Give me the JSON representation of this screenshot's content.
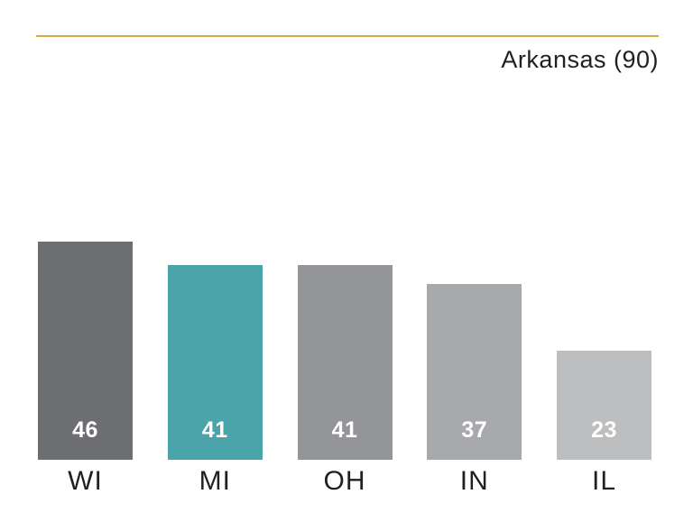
{
  "header": {
    "title": "Arkansas (90)"
  },
  "colors": {
    "rule": "#D8A73D",
    "value_label": "#FFFFFF",
    "category_label": "#231F20"
  },
  "chart_data": {
    "type": "bar",
    "title": "Arkansas (90)",
    "categories": [
      "WI",
      "MI",
      "OH",
      "IN",
      "IL"
    ],
    "values": [
      46,
      41,
      41,
      37,
      23
    ],
    "bar_colors": [
      "#6D6E71",
      "#4BA4AA",
      "#939598",
      "#A7A9AC",
      "#BCBEC0"
    ],
    "highlight_category": "MI",
    "xlabel": "",
    "ylabel": "",
    "ylim": [
      0,
      46
    ],
    "grid": false,
    "axes_shown": false,
    "value_labels_shown": true,
    "value_label_position": "inside-bottom",
    "legend": "none"
  }
}
